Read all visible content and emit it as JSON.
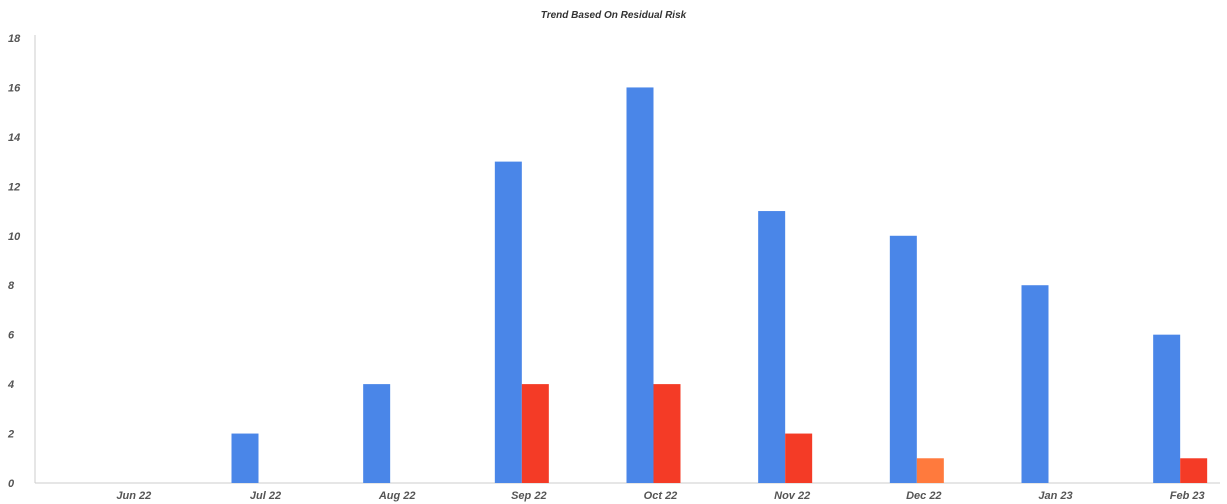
{
  "chart_data": {
    "type": "bar",
    "title": "Trend Based On Residual Risk",
    "xlabel": "",
    "ylabel": "",
    "ylim": [
      0,
      18
    ],
    "yticks": [
      0,
      2,
      4,
      6,
      8,
      10,
      12,
      14,
      16,
      18
    ],
    "grid": false,
    "legend": "none",
    "categories": [
      "Jun 22",
      "Jul 22",
      "Aug 22",
      "Sep 22",
      "Oct 22",
      "Nov 22",
      "Dec 22",
      "Jan 23",
      "Feb 23"
    ],
    "series": [
      {
        "color": "#4a86e8",
        "values": [
          0,
          2,
          4,
          13,
          16,
          11,
          10,
          8,
          6
        ]
      },
      {
        "color": "#f43b26",
        "values": [
          0,
          0,
          0,
          4,
          4,
          2,
          0,
          0,
          1
        ]
      },
      {
        "color": "#ff7a3d",
        "values": [
          0,
          0,
          0,
          0,
          0,
          0,
          1,
          0,
          0
        ]
      }
    ]
  }
}
